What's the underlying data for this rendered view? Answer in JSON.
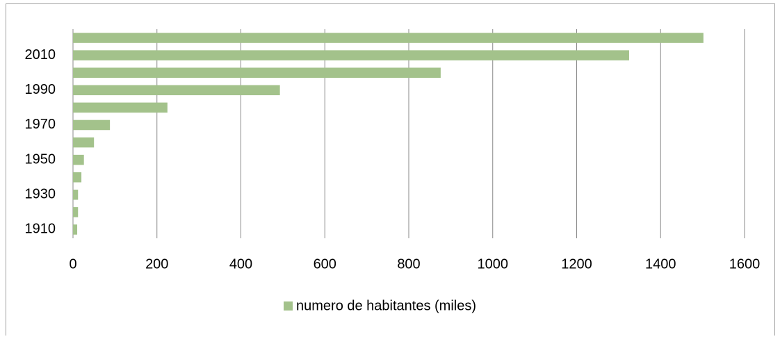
{
  "chart_data": {
    "type": "barh",
    "categories": [
      "1910",
      null,
      "1930",
      null,
      "1950",
      null,
      "1970",
      null,
      "1990",
      null,
      "2010",
      null
    ],
    "series": [
      {
        "name": "numero de habitantes (miles)",
        "color": "#a3c28b",
        "values": [
          10,
          12,
          12,
          20,
          26,
          50,
          88,
          225,
          493,
          876,
          1325,
          1502
        ]
      }
    ],
    "xlim": [
      0,
      1600
    ],
    "xticks": [
      0,
      200,
      400,
      600,
      800,
      1000,
      1200,
      1400,
      1600
    ],
    "grid": true,
    "legend": "bottom"
  }
}
